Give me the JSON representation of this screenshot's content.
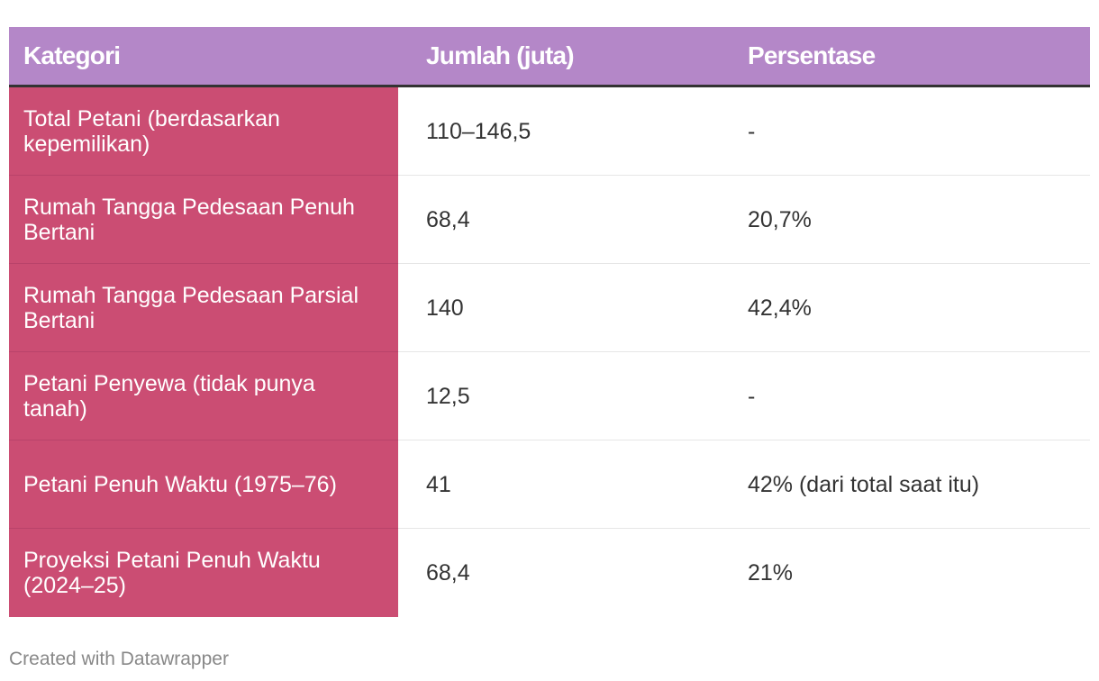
{
  "chart_data": {
    "type": "table",
    "columns": [
      "Kategori",
      "Jumlah (juta)",
      "Persentase"
    ],
    "rows": [
      {
        "kategori": "Total Petani (berdasarkan kepemilikan)",
        "jumlah": "110–146,5",
        "persentase": "-"
      },
      {
        "kategori": "Rumah Tangga Pedesaan Penuh Bertani",
        "jumlah": "68,4",
        "persentase": "20,7%"
      },
      {
        "kategori": "Rumah Tangga Pedesaan Parsial Bertani",
        "jumlah": "140",
        "persentase": "42,4%"
      },
      {
        "kategori": "Petani Penyewa (tidak punya tanah)",
        "jumlah": "12,5",
        "persentase": "-"
      },
      {
        "kategori": "Petani Penuh Waktu (1975–76)",
        "jumlah": "41",
        "persentase": "42% (dari total saat itu)"
      },
      {
        "kategori": "Proyeksi Petani Penuh Waktu (2024–25)",
        "jumlah": "68,4",
        "persentase": "21%"
      }
    ],
    "colors": {
      "header_bg": "#b487c8",
      "first_column_bg": "#cb4d73"
    }
  },
  "footer": {
    "credit": "Created with Datawrapper"
  }
}
